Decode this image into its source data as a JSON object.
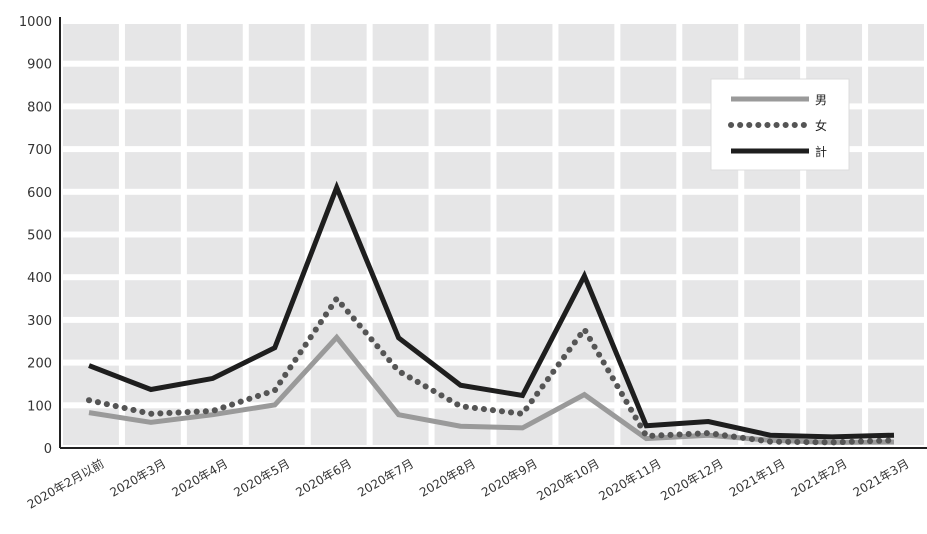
{
  "chart_data": {
    "type": "line",
    "title": "",
    "xlabel": "",
    "ylabel": "",
    "ylim": [
      0,
      1000
    ],
    "yticks": [
      0,
      100,
      200,
      300,
      400,
      500,
      600,
      700,
      800,
      900,
      1000
    ],
    "grid": true,
    "legend_position": "top-right",
    "categories": [
      "2020年2月以前",
      "2020年3月",
      "2020年4月",
      "2020年5月",
      "2020年6月",
      "2020年7月",
      "2020年8月",
      "2020年9月",
      "2020年10月",
      "2020年11月",
      "2020年12月",
      "2021年1月",
      "2021年2月",
      "2021年3月"
    ],
    "series": [
      {
        "name": "男",
        "color": "#9a9a9a",
        "style": "solid",
        "values": [
          83,
          60,
          78,
          101,
          259,
          78,
          51,
          47,
          125,
          22,
          30,
          18,
          13,
          14
        ]
      },
      {
        "name": "女",
        "color": "#555555",
        "style": "dotted",
        "values": [
          112,
          80,
          87,
          135,
          350,
          180,
          98,
          80,
          278,
          28,
          35,
          15,
          13,
          18
        ]
      },
      {
        "name": "計",
        "color": "#1e1e1e",
        "style": "solid",
        "values": [
          193,
          137,
          163,
          235,
          610,
          258,
          147,
          123,
          403,
          52,
          62,
          30,
          26,
          30
        ]
      }
    ]
  }
}
